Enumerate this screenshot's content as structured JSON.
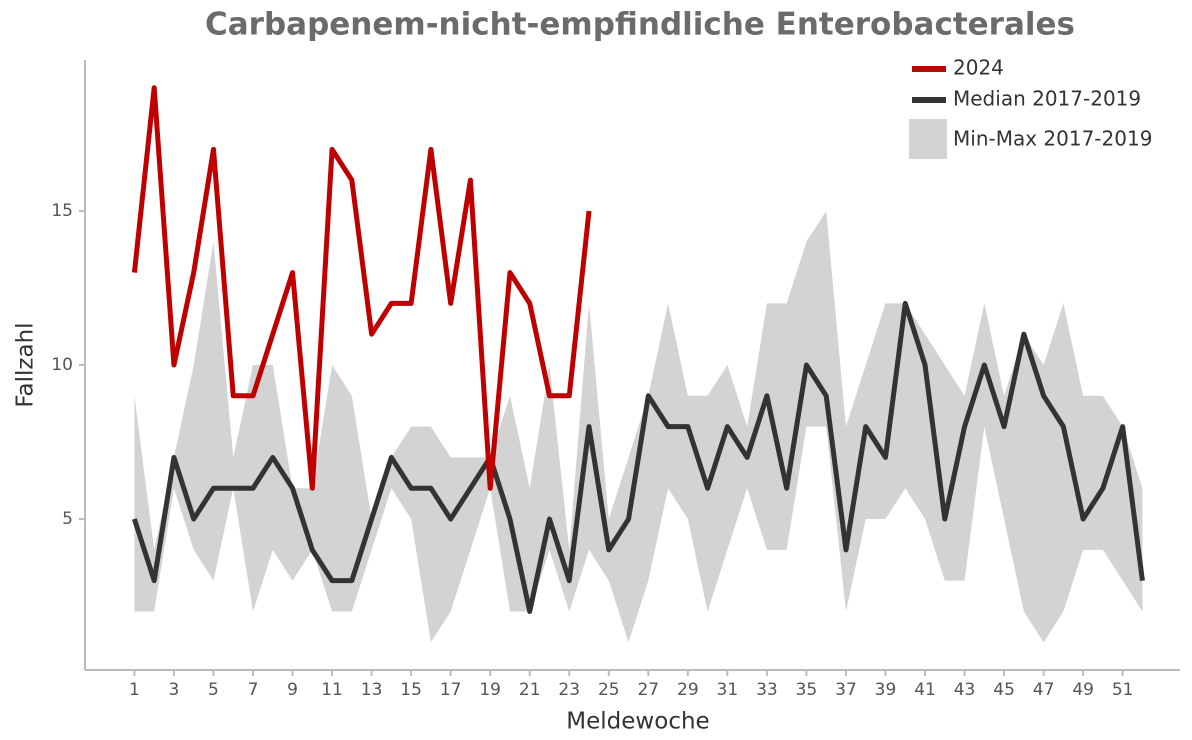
{
  "chart_data": {
    "type": "line",
    "title": "Carbapenem-nicht-empfindliche Enterobacterales",
    "x_label": "Meldewoche",
    "y_label": "Fallzahl",
    "x": [
      1,
      2,
      3,
      4,
      5,
      6,
      7,
      8,
      9,
      10,
      11,
      12,
      13,
      14,
      15,
      16,
      17,
      18,
      19,
      20,
      21,
      22,
      23,
      24,
      25,
      26,
      27,
      28,
      29,
      30,
      31,
      32,
      33,
      34,
      35,
      36,
      37,
      38,
      39,
      40,
      41,
      42,
      43,
      44,
      45,
      46,
      47,
      48,
      49,
      50,
      51,
      52
    ],
    "xlim": [
      -1.5,
      53.9
    ],
    "xticks": [
      1,
      3,
      5,
      7,
      9,
      11,
      13,
      15,
      17,
      19,
      21,
      23,
      25,
      27,
      29,
      31,
      33,
      35,
      37,
      39,
      41,
      43,
      45,
      47,
      49,
      51
    ],
    "ylim": [
      0.1,
      19.9
    ],
    "yticks": [
      5,
      10,
      15
    ],
    "band": {
      "name": "Min-Max 2017-2019",
      "color": "#d3d3d3",
      "min": [
        2,
        2,
        6,
        4,
        3,
        6,
        2,
        4,
        3,
        4,
        2,
        2,
        4,
        6,
        5,
        1,
        2,
        4,
        6,
        2,
        2,
        4,
        2,
        4,
        3,
        1,
        3,
        6,
        5,
        2,
        4,
        6,
        4,
        4,
        8,
        8,
        2,
        5,
        5,
        6,
        5,
        3,
        3,
        8,
        5,
        2,
        1,
        2,
        4,
        4,
        3,
        2
      ],
      "max": [
        9,
        4,
        7,
        10,
        14,
        7,
        10,
        10,
        6,
        6,
        10,
        9,
        5,
        7,
        8,
        8,
        7,
        7,
        7,
        9,
        6,
        10,
        4,
        12,
        5,
        7,
        9,
        12,
        9,
        9,
        10,
        8,
        12,
        12,
        14,
        15,
        8,
        10,
        12,
        12,
        11,
        10,
        9,
        12,
        9,
        11,
        10,
        12,
        9,
        9,
        8,
        6
      ]
    },
    "series": [
      {
        "name": "2024",
        "color": "#c00000",
        "values": [
          13,
          19,
          10,
          13,
          17,
          9,
          9,
          11,
          13,
          6,
          17,
          16,
          11,
          12,
          12,
          17,
          12,
          16,
          6,
          13,
          12,
          9,
          9,
          15,
          null,
          null,
          null,
          null,
          null,
          null,
          null,
          null,
          null,
          null,
          null,
          null,
          null,
          null,
          null,
          null,
          null,
          null,
          null,
          null,
          null,
          null,
          null,
          null,
          null,
          null,
          null,
          null
        ]
      },
      {
        "name": "Median 2017-2019",
        "color": "#333333",
        "values": [
          5,
          3,
          7,
          5,
          6,
          6,
          6,
          7,
          6,
          4,
          3,
          3,
          5,
          7,
          6,
          6,
          5,
          6,
          7,
          5,
          2,
          5,
          3,
          8,
          4,
          5,
          9,
          8,
          8,
          6,
          8,
          7,
          9,
          6,
          10,
          9,
          4,
          8,
          7,
          12,
          10,
          5,
          8,
          10,
          8,
          11,
          9,
          8,
          5,
          6,
          8,
          3
        ]
      }
    ]
  }
}
